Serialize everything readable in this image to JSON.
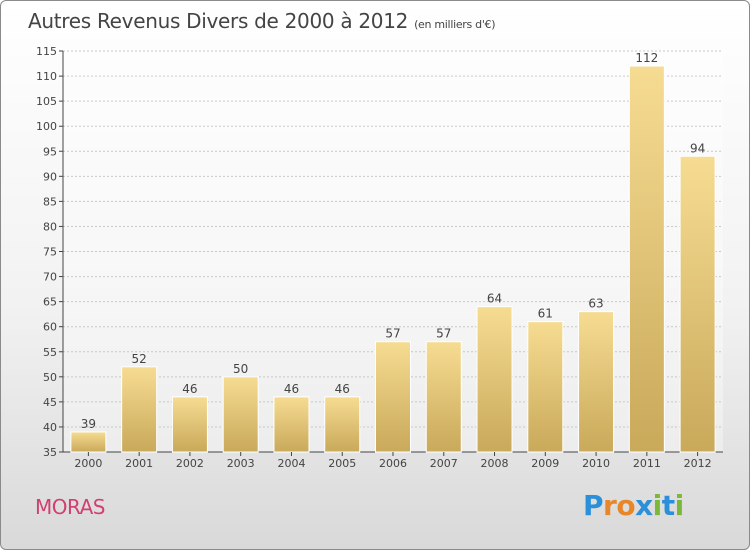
{
  "title": "Autres Revenus Divers de 2000 à 2012",
  "subtitle": "(en milliers d'€)",
  "place": "MORAS",
  "brand": {
    "letters": [
      "P",
      "r",
      "o",
      "x",
      "i",
      "t",
      "i"
    ],
    "colors": [
      "#2b8fd9",
      "#e8862a",
      "#e8862a",
      "#2b8fd9",
      "#7bb83a",
      "#2b8fd9",
      "#7bb83a"
    ]
  },
  "colors": {
    "bar_top": "#f6dc92",
    "bar_bottom": "#c9a95a",
    "grid": "#c8c8c8",
    "axis": "#444444",
    "place": "#d1406e"
  },
  "chart_data": {
    "type": "bar",
    "categories": [
      "2000",
      "2001",
      "2002",
      "2003",
      "2004",
      "2005",
      "2006",
      "2007",
      "2008",
      "2009",
      "2010",
      "2011",
      "2012"
    ],
    "values": [
      39,
      52,
      46,
      50,
      46,
      46,
      57,
      57,
      64,
      61,
      63,
      112,
      94
    ],
    "ylim": [
      35,
      115
    ],
    "yticks": [
      35,
      40,
      45,
      50,
      55,
      60,
      65,
      70,
      75,
      80,
      85,
      90,
      95,
      100,
      105,
      110,
      115
    ],
    "grid": true,
    "data_labels": true
  }
}
